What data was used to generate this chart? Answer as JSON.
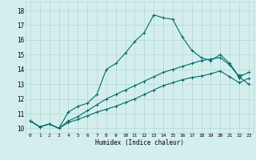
{
  "xlabel": "Humidex (Indice chaleur)",
  "xlim": [
    -0.5,
    23.5
  ],
  "ylim": [
    9.7,
    18.6
  ],
  "yticks": [
    10,
    11,
    12,
    13,
    14,
    15,
    16,
    17,
    18
  ],
  "xticks": [
    0,
    1,
    2,
    3,
    4,
    5,
    6,
    7,
    8,
    9,
    10,
    11,
    12,
    13,
    14,
    15,
    16,
    17,
    18,
    19,
    20,
    21,
    22,
    23
  ],
  "bg_color": "#d4eeed",
  "grid_color": "#b0d8d5",
  "line_color": "#006b6b",
  "line1": [
    10.5,
    10.1,
    10.3,
    10.0,
    11.1,
    11.5,
    11.7,
    12.3,
    14.0,
    14.4,
    15.1,
    15.9,
    16.5,
    17.7,
    17.5,
    17.4,
    16.2,
    15.3,
    14.8,
    14.6,
    15.0,
    14.4,
    13.5,
    13.0
  ],
  "line2": [
    10.5,
    10.1,
    10.3,
    10.0,
    10.5,
    10.8,
    11.2,
    11.6,
    12.0,
    12.3,
    12.6,
    12.9,
    13.2,
    13.5,
    13.8,
    14.0,
    14.2,
    14.4,
    14.6,
    14.7,
    14.8,
    14.3,
    13.5,
    13.8
  ],
  "line3": [
    10.5,
    10.1,
    10.3,
    10.0,
    10.4,
    10.6,
    10.85,
    11.1,
    11.3,
    11.5,
    11.75,
    12.0,
    12.3,
    12.6,
    12.9,
    13.1,
    13.3,
    13.45,
    13.55,
    13.7,
    13.9,
    13.5,
    13.1,
    13.4
  ],
  "triangle_x": 22,
  "triangle_y": 13.5,
  "marker_size": 2.5,
  "linewidth": 0.8
}
